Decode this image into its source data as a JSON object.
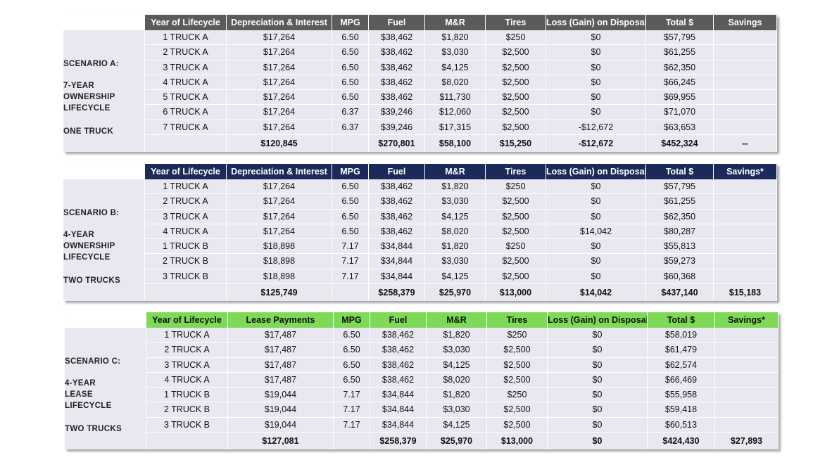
{
  "scenarios": [
    {
      "label_lines": [
        "SCENARIO A:",
        "7-YEAR",
        "OWNERSHIP",
        "LIFECYCLE",
        "ONE TRUCK"
      ],
      "headers": [
        "Year of Lifecycle",
        "Depreciation & Interest",
        "MPG",
        "Fuel",
        "M&R",
        "Tires",
        "Loss (Gain) on Disposal",
        "Total $",
        "Savings"
      ],
      "rows": [
        [
          "1 TRUCK A",
          "$17,264",
          "6.50",
          "$38,462",
          "$1,820",
          "$250",
          "$0",
          "$57,795",
          ""
        ],
        [
          "2 TRUCK A",
          "$17,264",
          "6.50",
          "$38,462",
          "$3,030",
          "$2,500",
          "$0",
          "$61,255",
          ""
        ],
        [
          "3 TRUCK A",
          "$17,264",
          "6.50",
          "$38,462",
          "$4,125",
          "$2,500",
          "$0",
          "$62,350",
          ""
        ],
        [
          "4 TRUCK A",
          "$17,264",
          "6.50",
          "$38,462",
          "$8,020",
          "$2,500",
          "$0",
          "$66,245",
          ""
        ],
        [
          "5 TRUCK A",
          "$17,264",
          "6.50",
          "$38,462",
          "$11,730",
          "$2,500",
          "$0",
          "$69,955",
          ""
        ],
        [
          "6 TRUCK A",
          "$17,264",
          "6.37",
          "$39,246",
          "$12,060",
          "$2,500",
          "$0",
          "$71,070",
          ""
        ],
        [
          "7 TRUCK A",
          "$17,264",
          "6.37",
          "$39,246",
          "$17,315",
          "$2,500",
          "-$12,672",
          "$63,653",
          ""
        ]
      ],
      "totals": [
        "",
        "$120,845",
        "",
        "$270,801",
        "$58,100",
        "$15,250",
        "-$12,672",
        "$452,324",
        "--"
      ]
    },
    {
      "label_lines": [
        "SCENARIO B:",
        "4-YEAR",
        "OWNERSHIP",
        "LIFECYCLE",
        "TWO TRUCKS"
      ],
      "headers": [
        "Year of Lifecycle",
        "Depreciation & Interest",
        "MPG",
        "Fuel",
        "M&R",
        "Tires",
        "Loss (Gain) on Disposal",
        "Total $",
        "Savings*"
      ],
      "rows": [
        [
          "1 TRUCK A",
          "$17,264",
          "6.50",
          "$38,462",
          "$1,820",
          "$250",
          "$0",
          "$57,795",
          ""
        ],
        [
          "2 TRUCK A",
          "$17,264",
          "6.50",
          "$38,462",
          "$3,030",
          "$2,500",
          "$0",
          "$61,255",
          ""
        ],
        [
          "3 TRUCK A",
          "$17,264",
          "6.50",
          "$38,462",
          "$4,125",
          "$2,500",
          "$0",
          "$62,350",
          ""
        ],
        [
          "4 TRUCK A",
          "$17,264",
          "6.50",
          "$38,462",
          "$8,020",
          "$2,500",
          "$14,042",
          "$80,287",
          ""
        ],
        [
          "1 TRUCK B",
          "$18,898",
          "7.17",
          "$34,844",
          "$1,820",
          "$250",
          "$0",
          "$55,813",
          ""
        ],
        [
          "2 TRUCK B",
          "$18,898",
          "7.17",
          "$34,844",
          "$3,030",
          "$2,500",
          "$0",
          "$59,273",
          ""
        ],
        [
          "3 TRUCK B",
          "$18,898",
          "7.17",
          "$34,844",
          "$4,125",
          "$2,500",
          "$0",
          "$60,368",
          ""
        ]
      ],
      "totals": [
        "",
        "$125,749",
        "",
        "$258,379",
        "$25,970",
        "$13,000",
        "$14,042",
        "$437,140",
        "$15,183"
      ]
    },
    {
      "label_lines": [
        "SCENARIO C:",
        "4-YEAR",
        "LEASE",
        "LIFECYCLE",
        "TWO TRUCKS"
      ],
      "headers": [
        "Year of Lifecycle",
        "Lease Payments",
        "MPG",
        "Fuel",
        "M&R",
        "Tires",
        "Loss (Gain) on Disposal",
        "Total $",
        "Savings*"
      ],
      "rows": [
        [
          "1 TRUCK A",
          "$17,487",
          "6.50",
          "$38,462",
          "$1,820",
          "$250",
          "$0",
          "$58,019",
          ""
        ],
        [
          "2 TRUCK A",
          "$17,487",
          "6.50",
          "$38,462",
          "$3,030",
          "$2,500",
          "$0",
          "$61,479",
          ""
        ],
        [
          "3 TRUCK A",
          "$17,487",
          "6.50",
          "$38,462",
          "$4,125",
          "$2,500",
          "$0",
          "$62,574",
          ""
        ],
        [
          "4 TRUCK A",
          "$17,487",
          "6.50",
          "$38,462",
          "$8,020",
          "$2,500",
          "$0",
          "$66,469",
          ""
        ],
        [
          "1 TRUCK B",
          "$19,044",
          "7.17",
          "$34,844",
          "$1,820",
          "$250",
          "$0",
          "$55,958",
          ""
        ],
        [
          "2 TRUCK B",
          "$19,044",
          "7.17",
          "$34,844",
          "$3,030",
          "$2,500",
          "$0",
          "$59,418",
          ""
        ],
        [
          "3 TRUCK B",
          "$19,044",
          "7.17",
          "$34,844",
          "$4,125",
          "$2,500",
          "$0",
          "$60,513",
          ""
        ]
      ],
      "totals": [
        "",
        "$127,081",
        "",
        "$258,379",
        "$25,970",
        "$13,000",
        "$0",
        "$424,430",
        "$27,893"
      ]
    }
  ]
}
